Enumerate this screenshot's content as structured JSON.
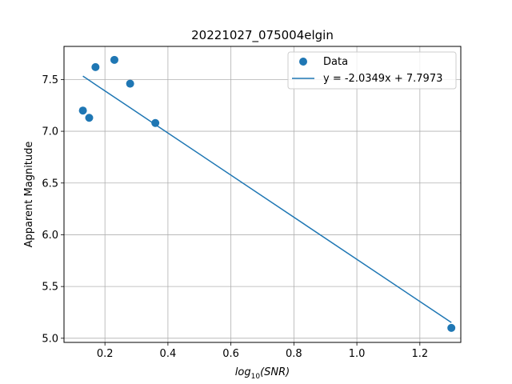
{
  "chart_data": {
    "type": "scatter",
    "title": "20221027_075004elgin",
    "xlabel_base": "log",
    "xlabel_sub": "10",
    "xlabel_arg": "(SNR)",
    "ylabel": "Apparent Magnitude",
    "xlim": [
      0.07,
      1.33
    ],
    "ylim": [
      4.96,
      7.82
    ],
    "xticks": [
      0.2,
      0.4,
      0.6,
      0.8,
      1.0,
      1.2
    ],
    "xtick_labels": [
      "0.2",
      "0.4",
      "0.6",
      "0.8",
      "1.0",
      "1.2"
    ],
    "yticks": [
      5.0,
      5.5,
      6.0,
      6.5,
      7.0,
      7.5
    ],
    "ytick_labels": [
      "5.0",
      "5.5",
      "6.0",
      "6.5",
      "7.0",
      "7.5"
    ],
    "grid": true,
    "legend_position": "top-right",
    "series": [
      {
        "name": "Data",
        "kind": "scatter",
        "color": "#1f77b4",
        "points": [
          {
            "x": 0.13,
            "y": 7.2
          },
          {
            "x": 0.15,
            "y": 7.13
          },
          {
            "x": 0.17,
            "y": 7.62
          },
          {
            "x": 0.23,
            "y": 7.69
          },
          {
            "x": 0.28,
            "y": 7.46
          },
          {
            "x": 0.36,
            "y": 7.08
          },
          {
            "x": 1.3,
            "y": 5.1
          }
        ]
      },
      {
        "name": "y = -2.0349x + 7.7973",
        "kind": "line",
        "color": "#1f77b4",
        "slope": -2.0349,
        "intercept": 7.7973,
        "x_points": [
          0.13,
          0.15,
          0.17,
          0.23,
          0.28,
          0.36,
          1.3
        ]
      }
    ]
  }
}
